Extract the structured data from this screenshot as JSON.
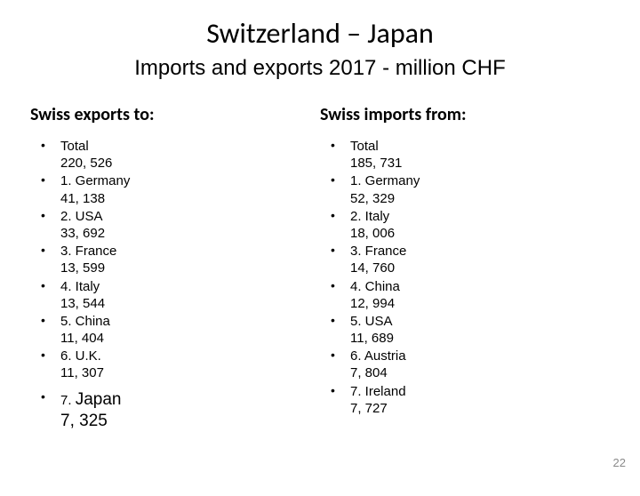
{
  "title": "Switzerland – Japan",
  "subtitle": "Imports and exports 2017 - million CHF",
  "page_number": "22",
  "left": {
    "heading": "Swiss exports to:",
    "items": [
      {
        "label": "Total",
        "value": "220, 526"
      },
      {
        "label": "1. Germany",
        "value": "41, 138"
      },
      {
        "label": "2. USA",
        "value": "33, 692"
      },
      {
        "label": "3. France",
        "value": "13, 599"
      },
      {
        "label": "4. Italy",
        "value": "13, 544"
      },
      {
        "label": "5. China",
        "value": "11, 404"
      },
      {
        "label": "6. U.K.",
        "value": "11, 307"
      }
    ],
    "emphasis": {
      "prefix": "7. ",
      "big": "Japan",
      "value": "7, 325"
    }
  },
  "right": {
    "heading": "Swiss imports from:",
    "items": [
      {
        "label": "Total",
        "value": "185, 731"
      },
      {
        "label": "1. Germany",
        "value": "52, 329"
      },
      {
        "label": "2.  Italy",
        "value": "18, 006"
      },
      {
        "label": "3.  France",
        "value": "14, 760"
      },
      {
        "label": "4.  China",
        "value": "12, 994"
      },
      {
        "label": "5.  USA",
        "value": "11, 689"
      },
      {
        "label": "6.  Austria",
        "value": "7, 804"
      },
      {
        "label": "7.  Ireland",
        "value": "7, 727"
      }
    ]
  },
  "colors": {
    "background": "#ffffff",
    "text": "#000000",
    "pagenum": "#8a8a8a"
  }
}
